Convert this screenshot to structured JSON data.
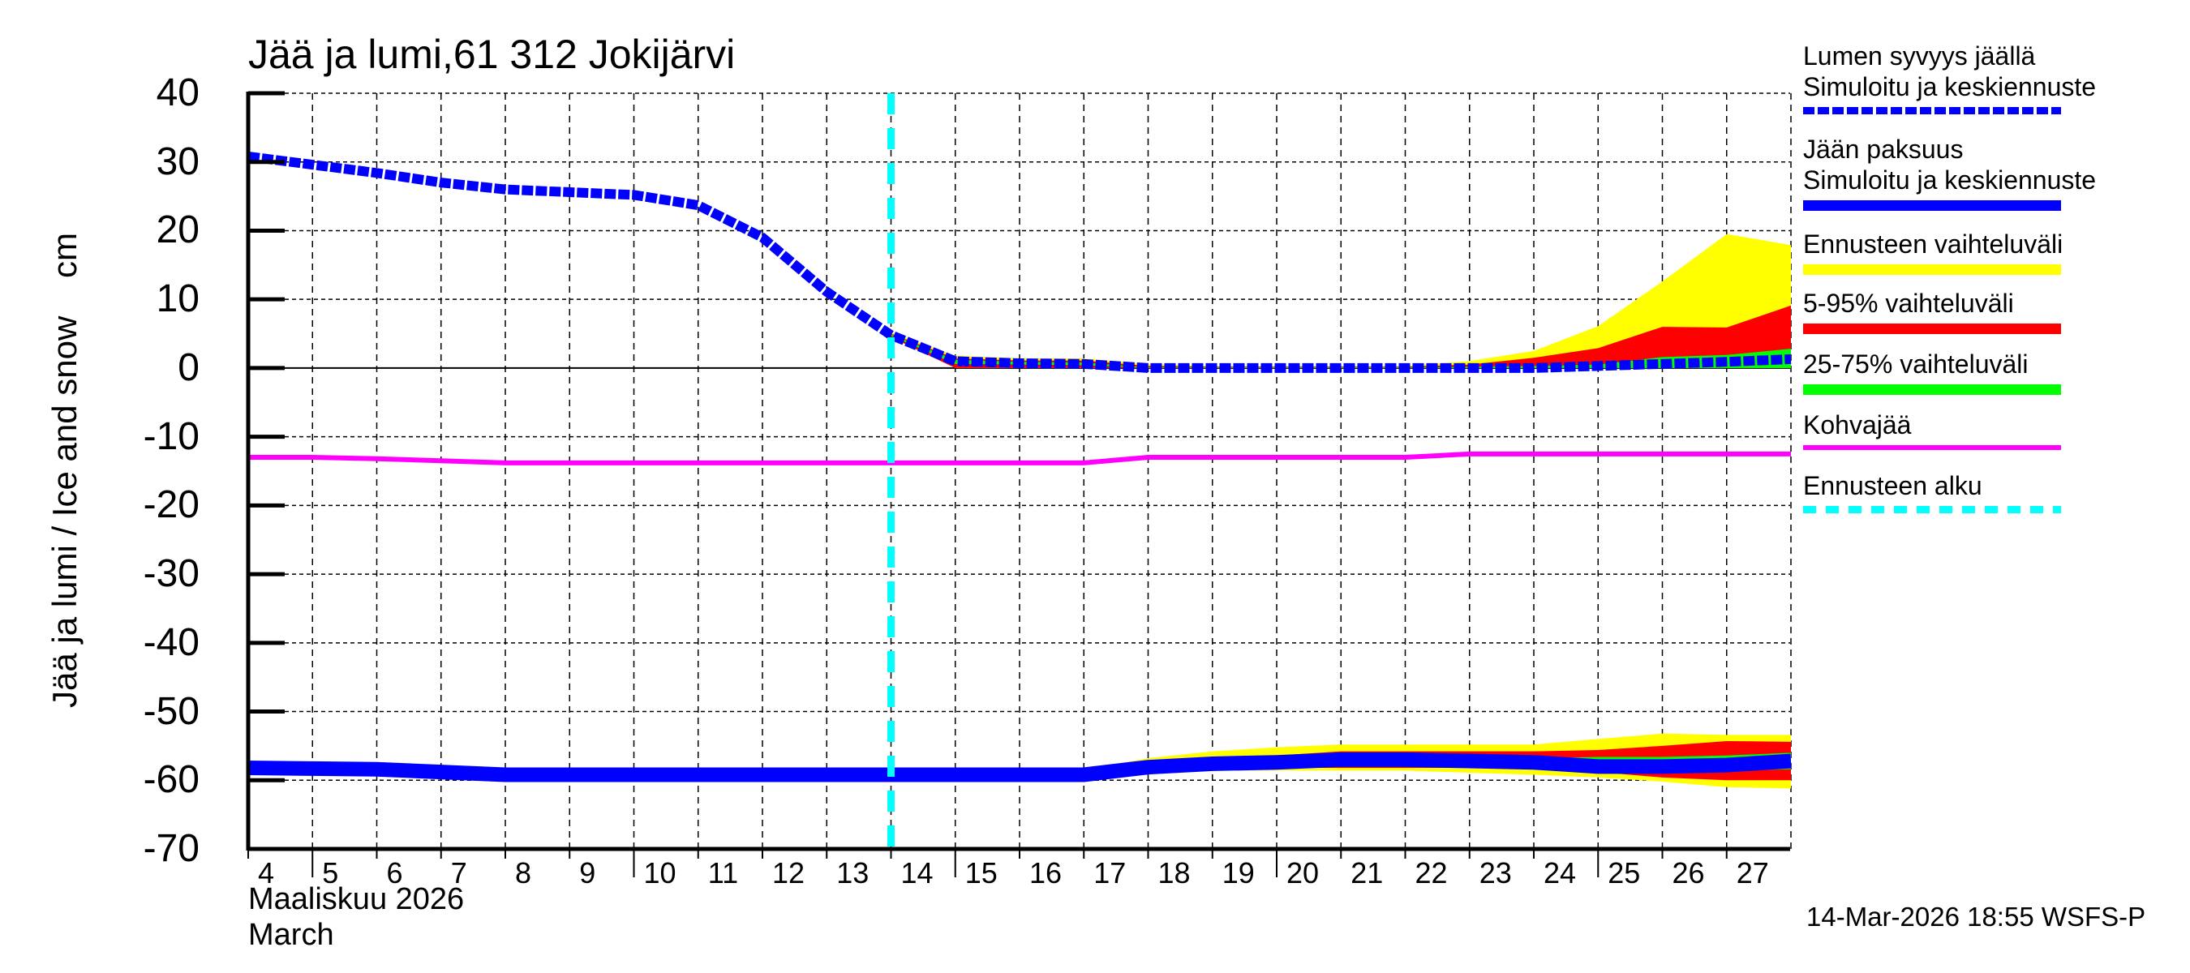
{
  "title": "Jää ja lumi,61 312 Jokijärvi",
  "y_axis_label": "Jää ja lumi / Ice and snow    cm",
  "x_axis_sublabel_1": "Maaliskuu 2026",
  "x_axis_sublabel_2": "March",
  "timestamp": "14-Mar-2026 18:55 WSFS-P",
  "colors": {
    "snow_line": "#0000ff",
    "ice_line": "#0000ff",
    "full_range": "#ffff00",
    "range_5_95": "#ff0000",
    "range_25_75": "#00ff00",
    "kohvajaa": "#ff00ff",
    "forecast_start": "#00ffff"
  },
  "legend": [
    {
      "label1": "Lumen syvyys jäällä",
      "label2": "Simuloitu ja keskiennuste",
      "style": "dashed-thick",
      "color": "#0000ff"
    },
    {
      "label1": "Jään paksuus",
      "label2": "Simuloitu ja keskiennuste",
      "style": "solid-thick",
      "color": "#0000ff"
    },
    {
      "label1": "Ennusteen vaihteluväli",
      "label2": "",
      "style": "solid-thick",
      "color": "#ffff00"
    },
    {
      "label1": "5-95% vaihteluväli",
      "label2": "",
      "style": "solid-thick",
      "color": "#ff0000"
    },
    {
      "label1": "25-75% vaihteluväli",
      "label2": "",
      "style": "solid-thick",
      "color": "#00ff00"
    },
    {
      "label1": "Kohvajää",
      "label2": "",
      "style": "solid-thin",
      "color": "#ff00ff"
    },
    {
      "label1": "Ennusteen alku",
      "label2": "",
      "style": "dashed",
      "color": "#00ffff"
    }
  ],
  "chart_data": {
    "type": "line",
    "title": "Jää ja lumi,61 312 Jokijärvi",
    "xlabel": "Maaliskuu 2026 / March",
    "ylabel": "Jää ja lumi / Ice and snow cm",
    "ylim": [
      -70,
      40
    ],
    "yticks": [
      40,
      30,
      20,
      10,
      0,
      -10,
      -20,
      -30,
      -40,
      -50,
      -60,
      -70
    ],
    "xlim": [
      4,
      28
    ],
    "xticks": [
      4,
      5,
      6,
      7,
      8,
      9,
      10,
      11,
      12,
      13,
      14,
      15,
      16,
      17,
      18,
      19,
      20,
      21,
      22,
      23,
      24,
      25,
      26,
      27
    ],
    "grid": true,
    "legend_position": "right",
    "forecast_start_day": 14,
    "series": [
      {
        "name": "Lumen syvyys jäällä – Simuloitu ja keskiennuste",
        "style": "dashed",
        "x": [
          4,
          5,
          6,
          7,
          8,
          9,
          10,
          11,
          12,
          13,
          14,
          15,
          16,
          17,
          18,
          19,
          20,
          21,
          22,
          23,
          24,
          25,
          26,
          27,
          28
        ],
        "values": [
          30.8,
          29.6,
          28.4,
          27.0,
          26.0,
          25.6,
          25.2,
          23.7,
          19.0,
          11.1,
          4.8,
          1.0,
          0.7,
          0.6,
          0.0,
          0.0,
          0.0,
          0.0,
          0.0,
          0.0,
          0.0,
          0.3,
          0.6,
          0.9,
          1.3
        ]
      },
      {
        "name": "Jään paksuus – Simuloitu ja keskiennuste",
        "style": "solid",
        "x": [
          4,
          5,
          6,
          7,
          8,
          9,
          10,
          11,
          12,
          13,
          14,
          15,
          16,
          17,
          18,
          19,
          20,
          21,
          22,
          23,
          24,
          25,
          26,
          27,
          28
        ],
        "values": [
          -58.2,
          -58.3,
          -58.4,
          -58.8,
          -59.2,
          -59.2,
          -59.2,
          -59.2,
          -59.2,
          -59.2,
          -59.2,
          -59.2,
          -59.2,
          -59.2,
          -58.1,
          -57.6,
          -57.4,
          -57.0,
          -57.0,
          -57.2,
          -57.4,
          -58.0,
          -58.0,
          -57.8,
          -57.2
        ]
      },
      {
        "name": "Ennusteen vaihteluväli (snow)",
        "style": "band",
        "x": [
          14,
          15,
          16,
          17,
          18,
          19,
          20,
          21,
          22,
          23,
          24,
          25,
          26,
          27,
          28
        ],
        "upper": [
          5.2,
          1.8,
          1.4,
          1.4,
          0.6,
          0.3,
          0.3,
          0.3,
          0.3,
          1.0,
          2.5,
          6.1,
          12.6,
          19.5,
          17.9
        ],
        "lower": [
          4.4,
          0.0,
          0.0,
          0.0,
          0.0,
          0.0,
          0.0,
          0.0,
          0.0,
          0.0,
          0.0,
          0.0,
          0.0,
          0.0,
          0.0
        ]
      },
      {
        "name": "5-95% vaihteluväli (snow)",
        "style": "band",
        "x": [
          14,
          15,
          16,
          17,
          18,
          19,
          20,
          21,
          22,
          23,
          24,
          25,
          26,
          27,
          28
        ],
        "upper": [
          5.0,
          1.4,
          1.1,
          1.1,
          0.3,
          0.2,
          0.2,
          0.2,
          0.2,
          0.5,
          1.5,
          2.9,
          6.0,
          5.9,
          9.1
        ],
        "lower": [
          4.5,
          0.0,
          0.0,
          0.0,
          0.0,
          0.0,
          0.0,
          0.0,
          0.0,
          0.0,
          0.0,
          0.0,
          0.0,
          0.0,
          0.0
        ]
      },
      {
        "name": "25-75% vaihteluväli (snow)",
        "style": "band",
        "x": [
          14,
          15,
          16,
          17,
          18,
          19,
          20,
          21,
          22,
          23,
          24,
          25,
          26,
          27,
          28
        ],
        "upper": [
          4.9,
          1.2,
          0.9,
          0.8,
          0.1,
          0.1,
          0.1,
          0.1,
          0.1,
          0.2,
          0.3,
          0.5,
          1.6,
          1.9,
          2.8
        ],
        "lower": [
          4.7,
          0.6,
          0.5,
          0.4,
          0.0,
          0.0,
          0.0,
          0.0,
          0.0,
          0.0,
          0.0,
          0.0,
          0.0,
          0.0,
          0.0
        ]
      },
      {
        "name": "Ennusteen vaihteluväli (ice)",
        "style": "band",
        "x": [
          17,
          18,
          19,
          20,
          21,
          22,
          23,
          24,
          25,
          26,
          27,
          28
        ],
        "upper": [
          -58.5,
          -56.8,
          -55.8,
          -55.2,
          -54.8,
          -54.8,
          -54.8,
          -54.8,
          -54.0,
          -53.2,
          -53.4,
          -53.4
        ],
        "lower": [
          -59.4,
          -58.8,
          -58.6,
          -58.6,
          -58.6,
          -58.6,
          -58.9,
          -59.2,
          -59.6,
          -60.2,
          -61.0,
          -61.2
        ]
      },
      {
        "name": "5-95% vaihteluväli (ice)",
        "style": "band",
        "x": [
          17,
          18,
          19,
          20,
          21,
          22,
          23,
          24,
          25,
          26,
          27,
          28
        ],
        "upper": [
          -58.8,
          -57.4,
          -56.8,
          -56.4,
          -55.8,
          -55.8,
          -55.8,
          -55.8,
          -55.6,
          -55.0,
          -54.3,
          -54.4
        ],
        "lower": [
          -59.3,
          -58.9,
          -58.5,
          -58.2,
          -58.2,
          -58.2,
          -58.2,
          -58.4,
          -58.8,
          -59.6,
          -60.0,
          -60.0
        ]
      },
      {
        "name": "25-75% vaihteluväli (ice)",
        "style": "band",
        "x": [
          17,
          18,
          19,
          20,
          21,
          22,
          23,
          24,
          25,
          26,
          27,
          28
        ],
        "upper": [
          -59.0,
          -57.8,
          -57.3,
          -57.0,
          -56.6,
          -56.6,
          -56.7,
          -56.8,
          -56.6,
          -56.6,
          -56.4,
          -56.0
        ],
        "lower": [
          -59.2,
          -58.5,
          -58.1,
          -57.8,
          -57.6,
          -57.6,
          -57.9,
          -58.0,
          -58.4,
          -58.4,
          -58.6,
          -58.4
        ]
      },
      {
        "name": "Kohvajää",
        "style": "solid",
        "x": [
          4,
          5,
          6,
          7,
          8,
          9,
          10,
          11,
          12,
          13,
          14,
          15,
          16,
          17,
          18,
          19,
          20,
          21,
          22,
          23,
          24,
          25,
          26,
          27,
          28
        ],
        "values": [
          -13.0,
          -13.0,
          -13.2,
          -13.5,
          -13.8,
          -13.8,
          -13.8,
          -13.8,
          -13.8,
          -13.8,
          -13.8,
          -13.8,
          -13.8,
          -13.8,
          -13.0,
          -13.0,
          -13.0,
          -13.0,
          -13.0,
          -12.5,
          -12.5,
          -12.5,
          -12.5,
          -12.5,
          -12.5
        ]
      }
    ]
  }
}
